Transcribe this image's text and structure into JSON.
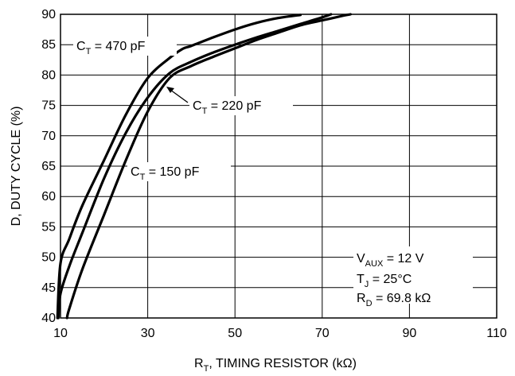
{
  "chart_data": {
    "type": "line",
    "xlabel": {
      "main": "R",
      "sub": "T",
      "rest": ", TIMING RESISTOR (kΩ)"
    },
    "ylabel": "D, DUTY CYCLE (%)",
    "xlim": [
      10,
      110
    ],
    "ylim": [
      40,
      90
    ],
    "xticks": [
      "10",
      "30",
      "50",
      "70",
      "90",
      "110"
    ],
    "yticks": [
      "40",
      "45",
      "50",
      "55",
      "60",
      "65",
      "70",
      "75",
      "80",
      "85",
      "90"
    ],
    "grid": true,
    "series": [
      {
        "name": "C_T = 470 pF",
        "x": [
          9.3,
          10,
          12,
          15,
          20,
          25,
          30,
          35,
          38,
          40,
          45,
          50,
          55,
          60,
          65
        ],
        "y": [
          40,
          49,
          53,
          58.5,
          66,
          73.5,
          79.5,
          82.8,
          84.3,
          84.8,
          86.2,
          87.5,
          88.6,
          89.4,
          89.9
        ]
      },
      {
        "name": "C_T = 220 pF",
        "x": [
          9.5,
          10,
          12,
          15,
          20,
          25,
          30,
          35,
          40,
          45,
          50,
          55,
          60,
          65,
          70,
          72
        ],
        "y": [
          40,
          44,
          48.5,
          54,
          63,
          70.5,
          76.3,
          80.3,
          82.2,
          83.7,
          85,
          86.2,
          87.3,
          88.4,
          89.5,
          90
        ]
      },
      {
        "name": "C_T = 150 pF",
        "x": [
          11.5,
          12,
          15,
          20,
          25,
          30,
          35,
          40,
          45,
          50,
          55,
          60,
          65,
          70,
          75,
          76.5
        ],
        "y": [
          40,
          41.5,
          48,
          57,
          66,
          74,
          79.5,
          81.5,
          83,
          84.4,
          85.8,
          87,
          88.2,
          89,
          89.8,
          90
        ]
      }
    ],
    "labels": [
      {
        "id": "c470",
        "base": "C",
        "sub": "T",
        "rest": " = 470 pF"
      },
      {
        "id": "c220",
        "base": "C",
        "sub": "T",
        "rest": " = 220 pF"
      },
      {
        "id": "c150",
        "base": "C",
        "sub": "T",
        "rest": " = 150 pF"
      }
    ],
    "conditions": [
      {
        "base": "V",
        "sub": "AUX",
        "rest": " = 12 V"
      },
      {
        "base": "T",
        "sub": "J",
        "rest": " = 25°C"
      },
      {
        "base": "R",
        "sub": "D",
        "rest": " = 69.8 kΩ"
      }
    ]
  }
}
